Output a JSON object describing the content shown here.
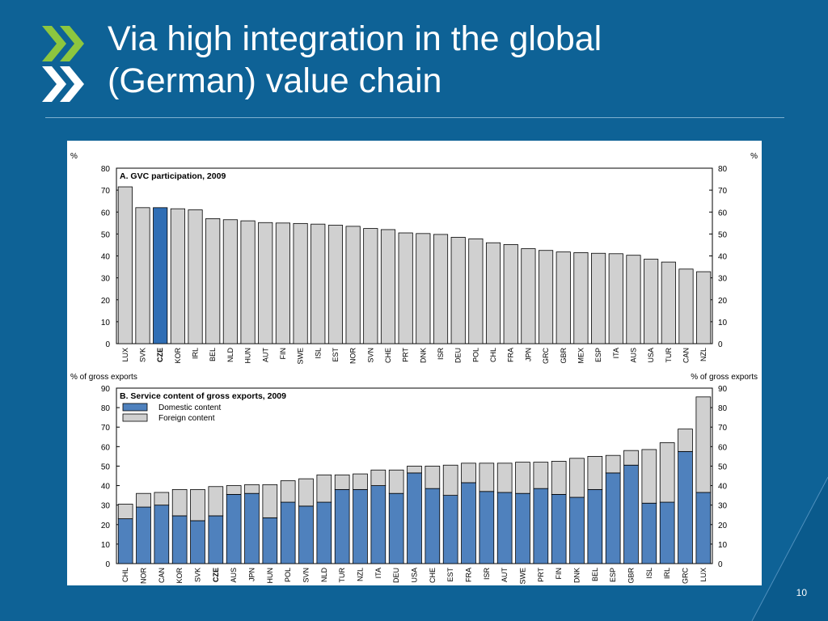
{
  "slide": {
    "title_line1": "Via high integration in the global",
    "title_line2": "(German) value chain",
    "page_number": "10",
    "colors": {
      "background": "#0e6296",
      "logo_green": "#8dc63f",
      "bar_grey": "#d0d0d0",
      "bar_blue": "#4f81bd",
      "highlight_blue": "#2f6eb5"
    }
  },
  "chart_data": [
    {
      "type": "bar",
      "title": "A. GVC participation, 2009",
      "ylabel_left": "%",
      "ylabel_right": "%",
      "ylim": [
        0,
        80
      ],
      "yticks": [
        0,
        10,
        20,
        30,
        40,
        50,
        60,
        70,
        80
      ],
      "highlight": "CZE",
      "categories": [
        "LUX",
        "SVK",
        "CZE",
        "KOR",
        "IRL",
        "BEL",
        "NLD",
        "HUN",
        "AUT",
        "FIN",
        "SWE",
        "ISL",
        "EST",
        "NOR",
        "SVN",
        "CHE",
        "PRT",
        "DNK",
        "ISR",
        "DEU",
        "POL",
        "CHL",
        "FRA",
        "JPN",
        "GRC",
        "GBR",
        "MEX",
        "ESP",
        "ITA",
        "AUS",
        "USA",
        "TUR",
        "CAN",
        "NZL"
      ],
      "values": [
        71.5,
        62,
        62,
        61.5,
        61,
        57,
        56.5,
        56,
        55.2,
        55,
        54.8,
        54.5,
        54,
        53.5,
        52.5,
        52,
        50.5,
        50.2,
        49.8,
        48.5,
        47.8,
        46,
        45.2,
        43.3,
        42.5,
        41.8,
        41.5,
        41.2,
        41,
        40.3,
        38.5,
        37.2,
        34,
        32.8
      ]
    },
    {
      "type": "bar",
      "stacked": true,
      "title": "B. Service content of gross exports, 2009",
      "ylabel_left": "% of gross exports",
      "ylabel_right": "% of gross exports",
      "ylim": [
        0,
        90
      ],
      "yticks": [
        0,
        10,
        20,
        30,
        40,
        50,
        60,
        70,
        80,
        90
      ],
      "highlight": "CZE",
      "legend_position": "top-left",
      "categories": [
        "CHL",
        "NOR",
        "CAN",
        "KOR",
        "SVK",
        "CZE",
        "AUS",
        "JPN",
        "HUN",
        "POL",
        "SVN",
        "NLD",
        "TUR",
        "NZL",
        "ITA",
        "DEU",
        "USA",
        "CHE",
        "EST",
        "FRA",
        "ISR",
        "AUT",
        "SWE",
        "PRT",
        "FIN",
        "DNK",
        "BEL",
        "ESP",
        "GBR",
        "ISL",
        "IRL",
        "GRC",
        "LUX"
      ],
      "series": [
        {
          "name": "Domestic content",
          "values": [
            23,
            29,
            30,
            24.5,
            22,
            24.5,
            35.5,
            36,
            23.5,
            31.5,
            29.5,
            31.5,
            38,
            38,
            40,
            36,
            46.5,
            38.5,
            35,
            41.5,
            37,
            36.5,
            36,
            38.5,
            35.5,
            34,
            38,
            46.5,
            50.5,
            31,
            31.5,
            57.5,
            36.5
          ]
        },
        {
          "name": "Foreign content",
          "values": [
            7.5,
            7,
            6.5,
            13.5,
            16,
            15,
            4.5,
            4.5,
            17,
            11,
            14,
            14,
            7.5,
            8,
            8,
            12,
            3.5,
            11.5,
            15.5,
            10,
            14.5,
            15,
            16,
            13.5,
            17,
            20,
            17,
            9,
            7.5,
            27.5,
            30.5,
            11.5,
            49
          ]
        }
      ]
    }
  ]
}
